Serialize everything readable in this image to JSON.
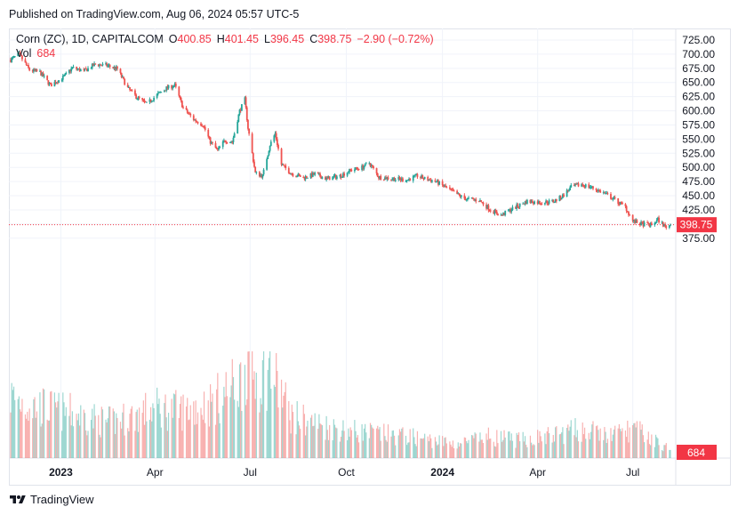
{
  "header": {
    "published": "Published on TradingView.com, Aug 06, 2024 05:57 UTC-5"
  },
  "legend": {
    "symbol": "Corn (ZC), 1D, CAPITALCOM",
    "o_label": "O",
    "o_value": "400.85",
    "h_label": "H",
    "h_value": "401.45",
    "l_label": "L",
    "l_value": "396.45",
    "c_label": "C",
    "c_value": "398.75",
    "change": "−2.90 (−0.72%)",
    "vol_label": "Vol",
    "vol_value": "684"
  },
  "footer": {
    "brand": "TradingView"
  },
  "colors": {
    "up": "#26a69a",
    "down": "#ef5350",
    "price_tag": "#f23645",
    "grid": "#f0f3fa",
    "text": "#131722"
  },
  "chart_data": {
    "type": "candlestick",
    "symbol": "Corn (ZC)",
    "interval": "1D",
    "exchange": "CAPITALCOM",
    "y_axis": {
      "ticks": [
        "725.00",
        "700.00",
        "675.00",
        "650.00",
        "625.00",
        "600.00",
        "575.00",
        "550.00",
        "525.00",
        "500.00",
        "475.00",
        "450.00",
        "425.00",
        "400.00",
        "375.00"
      ],
      "range": [
        363,
        735
      ]
    },
    "x_axis": {
      "ticks": [
        "2023",
        "Apr",
        "Jul",
        "Oct",
        "2024",
        "Apr",
        "Jul"
      ]
    },
    "last_price": "398.75",
    "last_volume": "684",
    "grid": true,
    "price_anchors": [
      [
        "2022-11-14",
        690
      ],
      [
        "2022-11-22",
        700
      ],
      [
        "2022-12-02",
        672
      ],
      [
        "2022-12-12",
        668
      ],
      [
        "2022-12-22",
        645
      ],
      [
        "2023-01-04",
        660
      ],
      [
        "2023-01-12",
        676
      ],
      [
        "2023-01-23",
        670
      ],
      [
        "2023-02-03",
        682
      ],
      [
        "2023-02-14",
        680
      ],
      [
        "2023-02-24",
        674
      ],
      [
        "2023-03-06",
        640
      ],
      [
        "2023-03-14",
        625
      ],
      [
        "2023-03-24",
        612
      ],
      [
        "2023-04-03",
        628
      ],
      [
        "2023-04-12",
        640
      ],
      [
        "2023-04-20",
        645
      ],
      [
        "2023-04-28",
        605
      ],
      [
        "2023-05-08",
        585
      ],
      [
        "2023-05-17",
        575
      ],
      [
        "2023-05-24",
        545
      ],
      [
        "2023-05-31",
        530
      ],
      [
        "2023-06-07",
        548
      ],
      [
        "2023-06-14",
        545
      ],
      [
        "2023-06-21",
        600
      ],
      [
        "2023-06-26",
        620
      ],
      [
        "2023-06-29",
        570
      ],
      [
        "2023-07-06",
        490
      ],
      [
        "2023-07-13",
        485
      ],
      [
        "2023-07-20",
        540
      ],
      [
        "2023-07-25",
        560
      ],
      [
        "2023-07-31",
        505
      ],
      [
        "2023-08-09",
        490
      ],
      [
        "2023-08-21",
        482
      ],
      [
        "2023-09-01",
        488
      ],
      [
        "2023-09-12",
        480
      ],
      [
        "2023-09-25",
        485
      ],
      [
        "2023-10-05",
        495
      ],
      [
        "2023-10-16",
        500
      ],
      [
        "2023-10-23",
        508
      ],
      [
        "2023-11-01",
        483
      ],
      [
        "2023-11-15",
        480
      ],
      [
        "2023-11-28",
        478
      ],
      [
        "2023-12-08",
        485
      ],
      [
        "2023-12-15",
        480
      ],
      [
        "2023-12-26",
        475
      ],
      [
        "2024-01-08",
        460
      ],
      [
        "2024-01-22",
        445
      ],
      [
        "2024-02-05",
        442
      ],
      [
        "2024-02-16",
        425
      ],
      [
        "2024-02-26",
        415
      ],
      [
        "2024-03-04",
        423
      ],
      [
        "2024-03-11",
        430
      ],
      [
        "2024-03-22",
        440
      ],
      [
        "2024-04-04",
        438
      ],
      [
        "2024-04-16",
        440
      ],
      [
        "2024-04-24",
        448
      ],
      [
        "2024-05-03",
        465
      ],
      [
        "2024-05-13",
        470
      ],
      [
        "2024-05-22",
        465
      ],
      [
        "2024-06-03",
        455
      ],
      [
        "2024-06-12",
        445
      ],
      [
        "2024-06-24",
        430
      ],
      [
        "2024-07-01",
        405
      ],
      [
        "2024-07-09",
        400
      ],
      [
        "2024-07-19",
        398
      ],
      [
        "2024-07-25",
        408
      ],
      [
        "2024-08-01",
        395
      ],
      [
        "2024-08-06",
        398.75
      ]
    ],
    "volume_anchors": [
      [
        "2022-11-14",
        5200
      ],
      [
        "2022-12-01",
        4500
      ],
      [
        "2023-01-10",
        3800
      ],
      [
        "2023-02-15",
        3000
      ],
      [
        "2023-03-10",
        3500
      ],
      [
        "2023-04-01",
        4200
      ],
      [
        "2023-04-25",
        4000
      ],
      [
        "2023-05-25",
        4600
      ],
      [
        "2023-06-22",
        6500
      ],
      [
        "2023-06-27",
        8000
      ],
      [
        "2023-07-05",
        7000
      ],
      [
        "2023-07-12",
        6800
      ],
      [
        "2023-07-20",
        7500
      ],
      [
        "2023-08-10",
        3500
      ],
      [
        "2023-09-15",
        2600
      ],
      [
        "2023-10-15",
        2200
      ],
      [
        "2023-12-01",
        1800
      ],
      [
        "2024-01-15",
        1200
      ],
      [
        "2024-02-15",
        1800
      ],
      [
        "2024-03-15",
        1500
      ],
      [
        "2024-04-15",
        1900
      ],
      [
        "2024-05-10",
        2400
      ],
      [
        "2024-06-10",
        1900
      ],
      [
        "2024-07-01",
        2500
      ],
      [
        "2024-07-20",
        1600
      ],
      [
        "2024-08-06",
        684
      ]
    ]
  }
}
